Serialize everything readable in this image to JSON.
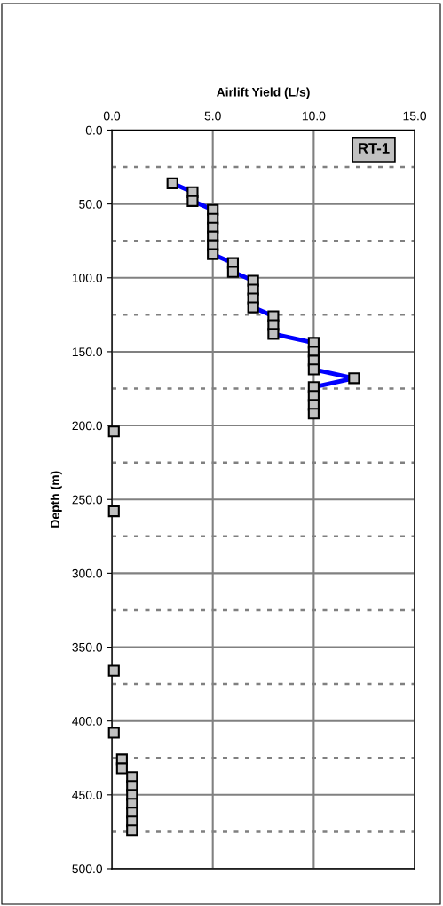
{
  "chart_data": {
    "type": "line",
    "xlabel": "Airlift Yield (L/s)",
    "ylabel": "Depth (m)",
    "annotations": [
      "RT-1"
    ],
    "xlim": [
      0,
      15
    ],
    "xticks": [
      {
        "value": 0,
        "label": "0.0"
      },
      {
        "value": 5,
        "label": "5.0"
      },
      {
        "value": 10,
        "label": "10.0"
      },
      {
        "value": 15,
        "label": "15.0"
      }
    ],
    "ylim": [
      500,
      0
    ],
    "yticks": [
      {
        "value": 0,
        "label": "0.0"
      },
      {
        "value": 50,
        "label": "50.0"
      },
      {
        "value": 100,
        "label": "100.0"
      },
      {
        "value": 150,
        "label": "150.0"
      },
      {
        "value": 200,
        "label": "200.0"
      },
      {
        "value": 250,
        "label": "250.0"
      },
      {
        "value": 300,
        "label": "300.0"
      },
      {
        "value": 350,
        "label": "350.0"
      },
      {
        "value": 400,
        "label": "400.0"
      },
      {
        "value": 450,
        "label": "450.0"
      },
      {
        "value": 500,
        "label": "500.0"
      }
    ],
    "grid": true,
    "marker": "square",
    "line_style": "solid",
    "series": [
      {
        "color": "#0000ff",
        "x": [
          3,
          4,
          4,
          5,
          5,
          5,
          5,
          5,
          5,
          6,
          6,
          7,
          7,
          7,
          7,
          8,
          8,
          8,
          10,
          10,
          10,
          10,
          12,
          10,
          10
        ],
        "values": [
          36,
          42,
          48,
          54,
          60,
          66,
          72,
          78,
          84,
          90,
          96,
          102,
          108,
          114,
          120,
          126,
          132,
          138,
          144,
          150,
          156,
          162,
          168,
          174,
          180
        ]
      },
      {
        "type": "scatter",
        "color": "#c0c0c0",
        "x": [
          10,
          10,
          0.1,
          0.1,
          0.1,
          0.1
        ],
        "values": [
          186,
          192,
          204,
          258,
          366,
          408
        ]
      },
      {
        "type": "scatter",
        "color": "#c0c0c0",
        "x": [
          0.5,
          0.5,
          1,
          1,
          1,
          1,
          1,
          1,
          1
        ],
        "values": [
          426,
          432,
          438,
          444,
          450,
          456,
          462,
          468,
          474
        ]
      }
    ],
    "ref_lines": [
      {
        "axis": "y",
        "value": 25,
        "color": "#808080",
        "line_style": "dotted"
      },
      {
        "axis": "y",
        "value": 75,
        "color": "#808080",
        "line_style": "dotted"
      },
      {
        "axis": "y",
        "value": 125,
        "color": "#808080",
        "line_style": "dotted"
      },
      {
        "axis": "y",
        "value": 175,
        "color": "#808080",
        "line_style": "dotted"
      },
      {
        "axis": "y",
        "value": 225,
        "color": "#808080",
        "line_style": "dotted"
      },
      {
        "axis": "y",
        "value": 275,
        "color": "#808080",
        "line_style": "dotted"
      },
      {
        "axis": "y",
        "value": 325,
        "color": "#808080",
        "line_style": "dotted"
      },
      {
        "axis": "y",
        "value": 375,
        "color": "#808080",
        "line_style": "dotted"
      },
      {
        "axis": "y",
        "value": 425,
        "color": "#808080",
        "line_style": "dotted"
      },
      {
        "axis": "y",
        "value": 475,
        "color": "#808080",
        "line_style": "dotted"
      }
    ]
  }
}
